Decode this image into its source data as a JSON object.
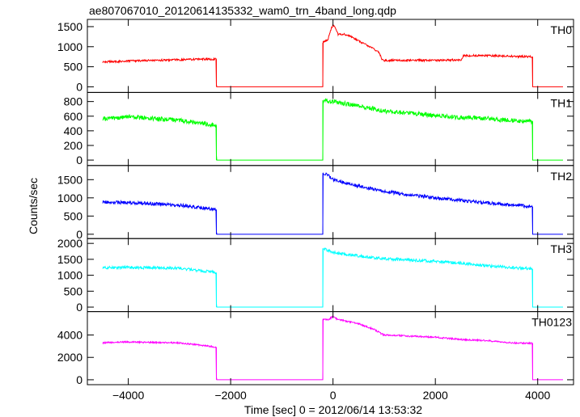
{
  "chart_data": {
    "type": "line",
    "title": "ae807067010_20120614135332_wam0_trn_4band_long.qdp",
    "xlabel": "Time [sec] 0 = 2012/06/14 13:53:32",
    "ylabel": "Counts/sec",
    "xlim": [
      -4800,
      4700
    ],
    "xticks": [
      -4000,
      -2000,
      0,
      2000,
      4000
    ],
    "xtick_labels": [
      "−4000",
      "−2000",
      "0",
      "2000",
      "4000"
    ],
    "grid": false,
    "panels": [
      {
        "label": "TH0",
        "color": "#ff0000",
        "ylim": [
          -60,
          1600
        ],
        "yticks": [
          0,
          500,
          1000,
          1500
        ],
        "noise": 25,
        "x": [
          -4500,
          -3500,
          -2500,
          -2280,
          -2279,
          -200,
          -199,
          -150,
          -100,
          -50,
          0,
          50,
          100,
          200,
          300,
          500,
          700,
          900,
          950,
          1000,
          1500,
          2000,
          2500,
          2550,
          2600,
          3000,
          3500,
          3900,
          3901,
          4500
        ],
        "y": [
          620,
          660,
          690,
          690,
          0,
          0,
          1100,
          1150,
          1180,
          1400,
          1550,
          1450,
          1300,
          1320,
          1280,
          1150,
          1000,
          870,
          700,
          660,
          660,
          660,
          670,
          780,
          780,
          780,
          760,
          750,
          0,
          0
        ]
      },
      {
        "label": "TH1",
        "color": "#00ff00",
        "ylim": [
          -30,
          880
        ],
        "yticks": [
          0,
          200,
          400,
          600,
          800
        ],
        "noise": 30,
        "x": [
          -4500,
          -4000,
          -3000,
          -2280,
          -2279,
          -200,
          -199,
          0,
          500,
          1000,
          1500,
          2000,
          2500,
          3000,
          3500,
          3900,
          3901,
          4500
        ],
        "y": [
          560,
          590,
          545,
          475,
          0,
          0,
          820,
          800,
          740,
          670,
          640,
          610,
          580,
          570,
          540,
          530,
          0,
          0
        ]
      },
      {
        "label": "TH2",
        "color": "#0000ff",
        "ylim": [
          -30,
          1800
        ],
        "yticks": [
          0,
          500,
          1000,
          1500
        ],
        "noise": 45,
        "x": [
          -4500,
          -4000,
          -3000,
          -2280,
          -2279,
          -200,
          -199,
          -100,
          0,
          500,
          1000,
          1500,
          2000,
          2500,
          3000,
          3500,
          3900,
          3901,
          4500
        ],
        "y": [
          880,
          870,
          800,
          680,
          0,
          0,
          1680,
          1620,
          1500,
          1320,
          1180,
          1080,
          1000,
          930,
          860,
          800,
          760,
          0,
          0
        ]
      },
      {
        "label": "TH3",
        "color": "#00ffff",
        "ylim": [
          -40,
          2050
        ],
        "yticks": [
          0,
          500,
          1000,
          1500,
          2000
        ],
        "noise": 45,
        "x": [
          -4500,
          -4000,
          -3000,
          -2280,
          -2279,
          -200,
          -199,
          -100,
          0,
          500,
          1000,
          1500,
          2000,
          2500,
          3000,
          3500,
          3900,
          3901,
          4500
        ],
        "y": [
          1230,
          1250,
          1220,
          1080,
          0,
          0,
          1850,
          1780,
          1720,
          1600,
          1520,
          1480,
          1440,
          1380,
          1300,
          1240,
          1200,
          0,
          0
        ]
      },
      {
        "label": "TH0123",
        "color": "#ff00ff",
        "ylim": [
          -150,
          5800
        ],
        "yticks": [
          0,
          2000,
          4000
        ],
        "noise": 70,
        "x": [
          -4500,
          -4000,
          -3000,
          -2280,
          -2279,
          -200,
          -199,
          -100,
          -50,
          0,
          50,
          100,
          200,
          500,
          800,
          950,
          1000,
          1500,
          2000,
          2500,
          3000,
          3500,
          3900,
          3901,
          4500
        ],
        "y": [
          3300,
          3380,
          3300,
          2920,
          0,
          0,
          5400,
          5350,
          5500,
          5700,
          5500,
          5350,
          5300,
          5000,
          4500,
          4100,
          4000,
          3900,
          3800,
          3600,
          3500,
          3300,
          3250,
          0,
          0
        ]
      }
    ]
  }
}
